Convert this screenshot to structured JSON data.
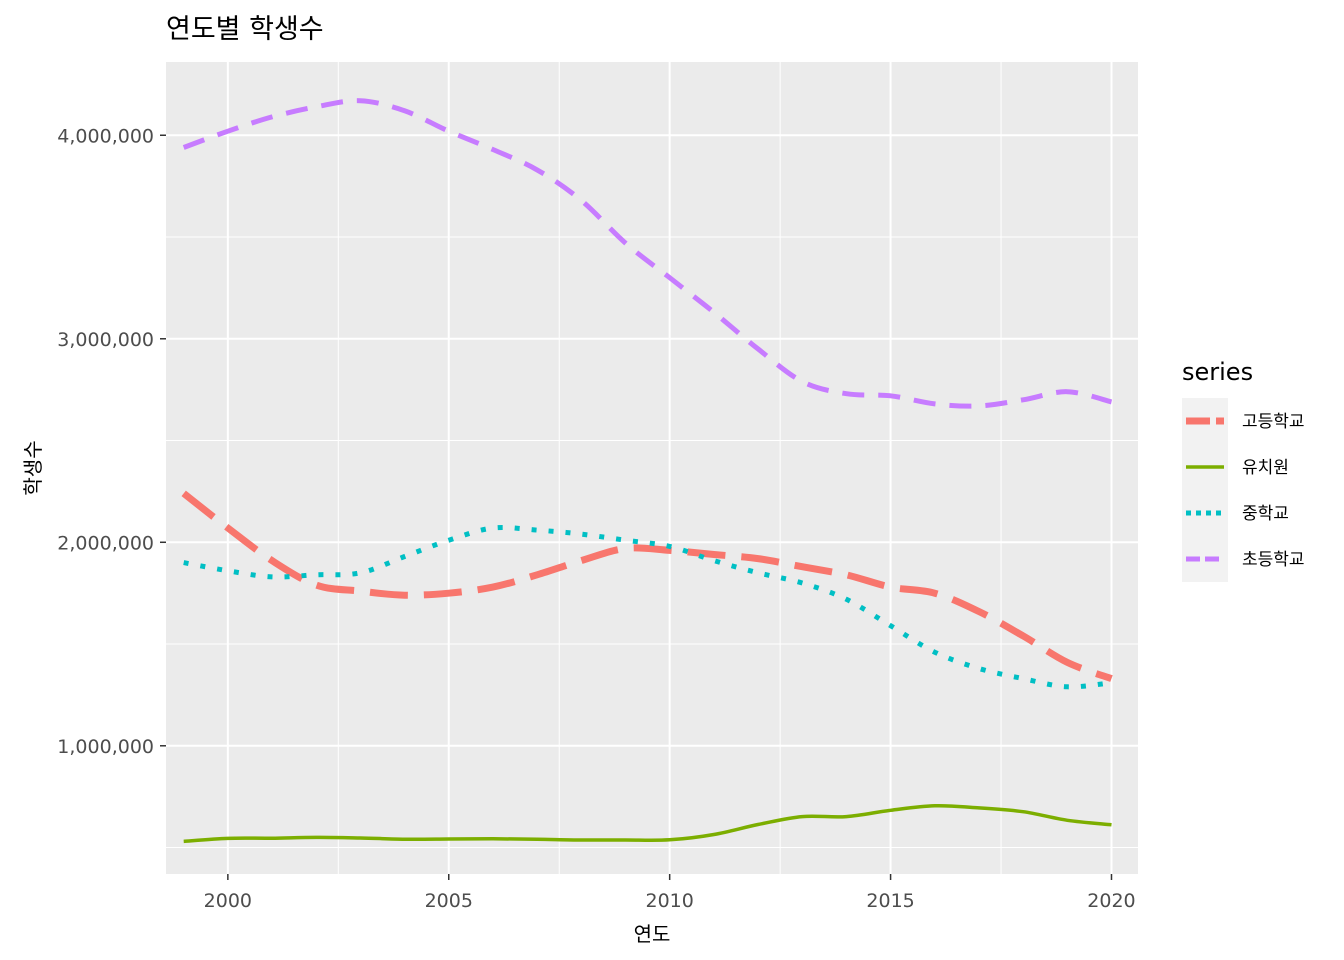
{
  "chart_data": {
    "type": "line",
    "title": "연도별 학생수",
    "xlabel": "연도",
    "ylabel": "학생수",
    "xlim": [
      1998.6,
      2020.6
    ],
    "ylim": [
      370000,
      4360000
    ],
    "x_ticks": [
      2000,
      2005,
      2010,
      2015,
      2020
    ],
    "x_tick_labels": [
      "2000",
      "2005",
      "2010",
      "2015",
      "2020"
    ],
    "y_ticks": [
      1000000,
      2000000,
      3000000,
      4000000
    ],
    "y_tick_labels": [
      "1,000,000",
      "2,000,000",
      "3,000,000",
      "4,000,000"
    ],
    "grid": true,
    "legend": {
      "title": "series",
      "position": "right"
    },
    "x": [
      1999,
      2000,
      2001,
      2002,
      2003,
      2004,
      2005,
      2006,
      2007,
      2008,
      2009,
      2010,
      2011,
      2012,
      2013,
      2014,
      2015,
      2016,
      2017,
      2018,
      2019,
      2020
    ],
    "series": [
      {
        "name": "고등학교",
        "color": "#F8766D",
        "dash": "longdash",
        "values": [
          2240000,
          2070000,
          1910000,
          1790000,
          1760000,
          1740000,
          1750000,
          1780000,
          1840000,
          1910000,
          1970000,
          1960000,
          1940000,
          1920000,
          1880000,
          1840000,
          1780000,
          1750000,
          1660000,
          1540000,
          1410000,
          1330000
        ]
      },
      {
        "name": "유치원",
        "color": "#7CAE00",
        "dash": "solid",
        "values": [
          530000,
          545000,
          546000,
          550000,
          547000,
          541000,
          542000,
          543000,
          541000,
          537000,
          537000,
          538000,
          564000,
          613000,
          652000,
          652000,
          683000,
          705000,
          695000,
          676000,
          634000,
          612000
        ]
      },
      {
        "name": "중학교",
        "color": "#00BFC4",
        "dash": "dotted",
        "values": [
          1900000,
          1860000,
          1830000,
          1840000,
          1850000,
          1930000,
          2010000,
          2070000,
          2060000,
          2040000,
          2010000,
          1980000,
          1910000,
          1850000,
          1800000,
          1720000,
          1590000,
          1460000,
          1380000,
          1330000,
          1290000,
          1310000
        ]
      },
      {
        "name": "초등학교",
        "color": "#C77CFF",
        "dash": "dashed",
        "values": [
          3940000,
          4020000,
          4090000,
          4140000,
          4170000,
          4120000,
          4020000,
          3930000,
          3830000,
          3680000,
          3470000,
          3300000,
          3130000,
          2950000,
          2790000,
          2730000,
          2720000,
          2680000,
          2670000,
          2700000,
          2740000,
          2690000
        ]
      }
    ]
  }
}
